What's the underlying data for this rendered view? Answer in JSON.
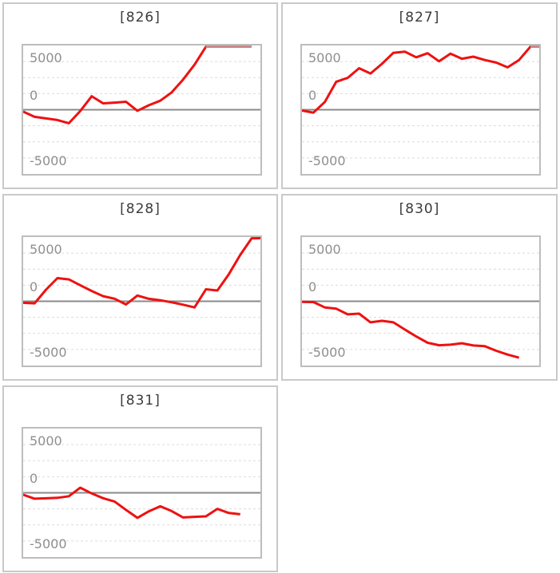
{
  "colors": {
    "background": "#ffffff",
    "panel_border": "#c9c9c9",
    "plot_border": "#bdbdbd",
    "zero_line": "#8a8a8a",
    "grid_dashed": "#dcdcdc",
    "series_line": "#ee1111",
    "series_line_clipped": "#cc8888",
    "title_text": "#3b3b3b",
    "axis_label_text": "#8f8f8f"
  },
  "chart_data": [
    {
      "type": "line",
      "title": "[826]",
      "y_ticks": [
        "5000",
        "0",
        "-5000"
      ],
      "ylim": [
        -5000,
        5000
      ],
      "grid_step": 1250,
      "clipped_at_max": true,
      "legend": "none",
      "values": [
        -150,
        -550,
        -680,
        -800,
        -1050,
        -100,
        1050,
        500,
        550,
        620,
        -80,
        350,
        700,
        1350,
        2350,
        3500,
        5000,
        5000,
        5000,
        5000,
        5000
      ]
    },
    {
      "type": "line",
      "title": "[827]",
      "y_ticks": [
        "5000",
        "0",
        "-5000"
      ],
      "ylim": [
        -5000,
        5000
      ],
      "grid_step": 1250,
      "clipped_at_max": true,
      "legend": "none",
      "values": [
        -60,
        -230,
        600,
        2180,
        2480,
        3230,
        2820,
        3570,
        4430,
        4520,
        4080,
        4400,
        3770,
        4365,
        3970,
        4130,
        3870,
        3670,
        3300,
        3870,
        5000,
        5000
      ]
    },
    {
      "type": "line",
      "title": "[828]",
      "y_ticks": [
        "5000",
        "0",
        "-5000"
      ],
      "ylim": [
        -5000,
        5000
      ],
      "grid_step": 1250,
      "clipped_at_max": true,
      "legend": "none",
      "values": [
        -120,
        -160,
        900,
        1800,
        1700,
        1250,
        800,
        400,
        200,
        -250,
        450,
        190,
        80,
        -80,
        -270,
        -480,
        930,
        840,
        2100,
        3600,
        4900,
        5000
      ]
    },
    {
      "type": "line",
      "title": "[830]",
      "y_ticks": [
        "5000",
        "0",
        "-5000"
      ],
      "ylim": [
        -5000,
        5000
      ],
      "grid_step": 1250,
      "clipped_at_max": false,
      "legend": "none",
      "values": [
        -50,
        -60,
        -480,
        -580,
        -1020,
        -960,
        -1640,
        -1520,
        -1640,
        -2200,
        -2740,
        -3230,
        -3420,
        -3380,
        -3270,
        -3440,
        -3500,
        -3850,
        -4150,
        -4390
      ]
    },
    {
      "type": "line",
      "title": "[831]",
      "y_ticks": [
        "5000",
        "0",
        "-5000"
      ],
      "ylim": [
        -5000,
        5000
      ],
      "grid_step": 1250,
      "clipped_at_max": false,
      "legend": "none",
      "values": [
        -150,
        -460,
        -430,
        -390,
        -270,
        400,
        -50,
        -420,
        -680,
        -1330,
        -1950,
        -1440,
        -1050,
        -1420,
        -1920,
        -1870,
        -1830,
        -1250,
        -1570,
        -1670
      ]
    }
  ]
}
